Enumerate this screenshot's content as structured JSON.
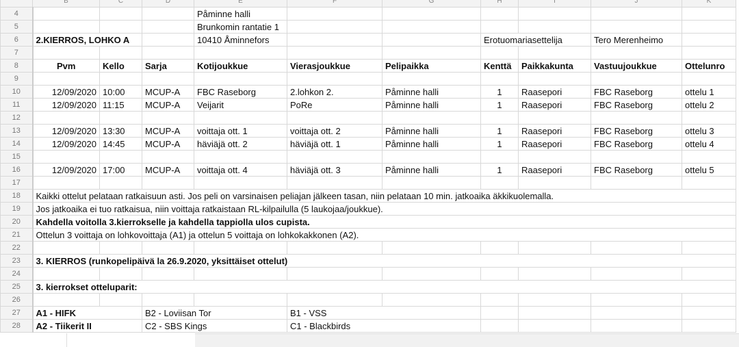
{
  "columns": [
    "B",
    "C",
    "D",
    "E",
    "F",
    "G",
    "H",
    "I",
    "J",
    "K"
  ],
  "rows": {
    "r4": {
      "num": "4",
      "E": "Påminne halli"
    },
    "r5": {
      "num": "5",
      "E": "Brunkomin rantatie 1"
    },
    "r6": {
      "num": "6",
      "B": "2.KIERROS, LOHKO A",
      "E": "10410 Åminnefors",
      "H": "Erotuomariasettelija",
      "J": "Tero Merenheimo"
    },
    "r7": {
      "num": "7"
    },
    "r8": {
      "num": "8",
      "headers": [
        "Pvm",
        "Kello",
        "Sarja",
        "Kotijoukkue",
        "Vierasjoukkue",
        "Pelipaikka",
        "Kenttä",
        "Paikkakunta",
        "Vastuujoukkue",
        "Ottelunro"
      ]
    },
    "r9": {
      "num": "9"
    },
    "r12": {
      "num": "12"
    },
    "r15": {
      "num": "15"
    },
    "r17": {
      "num": "17"
    },
    "r18": {
      "num": "18",
      "B": "Kaikki ottelut pelataan ratkaisuun asti. Jos peli on varsinaisen peliajan jälkeen tasan, niin pelataan 10 min. jatkoaika äkkikuolemalla."
    },
    "r19": {
      "num": "19",
      "B": "Jos jatkoaika ei tuo ratkaisua, niin voittaja ratkaistaan RL-kilpailulla (5 laukojaa/joukkue)."
    },
    "r20": {
      "num": "20",
      "B": "Kahdella voitolla 3.kierrokselle ja kahdella tappiolla ulos cupista."
    },
    "r21": {
      "num": "21",
      "B": "Ottelun 3 voittaja on lohkovoittaja (A1) ja ottelun 5 voittaja on lohkokakkonen (A2)."
    },
    "r22": {
      "num": "22"
    },
    "r23": {
      "num": "23",
      "B": "3. KIERROS (runkopelipäivä la 26.9.2020, yksittäiset ottelut)"
    },
    "r24": {
      "num": "24"
    },
    "r25": {
      "num": "25",
      "B": "3. kierrokset otteluparit:"
    },
    "r26": {
      "num": "26"
    },
    "r27": {
      "num": "27",
      "B": "A1 - HIFK",
      "D": "B2 - Loviisan Tor",
      "F": "B1 - VSS"
    },
    "r28": {
      "num": "28",
      "B": "A2 - Tiikerit II",
      "D": "C2 - SBS Kings",
      "F": "C1 - Blackbirds"
    }
  },
  "matches": [
    {
      "num": "10",
      "date": "12/09/2020",
      "time": "10:00",
      "series": "MCUP-A",
      "home": "FBC Raseborg",
      "away": "2.lohkon 2.",
      "venue": "Påminne halli",
      "field": "1",
      "town": "Raasepori",
      "resp": "FBC Raseborg",
      "match": "ottelu 1"
    },
    {
      "num": "11",
      "date": "12/09/2020",
      "time": "11:15",
      "series": "MCUP-A",
      "home": "Veijarit",
      "away": "PoRe",
      "venue": "Påminne halli",
      "field": "1",
      "town": "Raasepori",
      "resp": "FBC Raseborg",
      "match": "ottelu 2"
    },
    {
      "num": "13",
      "date": "12/09/2020",
      "time": "13:30",
      "series": "MCUP-A",
      "home": "voittaja ott. 1",
      "away": "voittaja ott. 2",
      "venue": "Påminne halli",
      "field": "1",
      "town": "Raasepori",
      "resp": "FBC Raseborg",
      "match": "ottelu 3"
    },
    {
      "num": "14",
      "date": "12/09/2020",
      "time": "14:45",
      "series": "MCUP-A",
      "home": "häviäjä ott. 2",
      "away": "häviäjä ott. 1",
      "venue": "Påminne halli",
      "field": "1",
      "town": "Raasepori",
      "resp": "FBC Raseborg",
      "match": "ottelu 4"
    },
    {
      "num": "16",
      "date": "12/09/2020",
      "time": "17:00",
      "series": "MCUP-A",
      "home": "voittaja ott. 4",
      "away": "häviäjä ott. 3",
      "venue": "Påminne halli",
      "field": "1",
      "town": "Raasepori",
      "resp": "FBC Raseborg",
      "match": "ottelu 5"
    }
  ]
}
